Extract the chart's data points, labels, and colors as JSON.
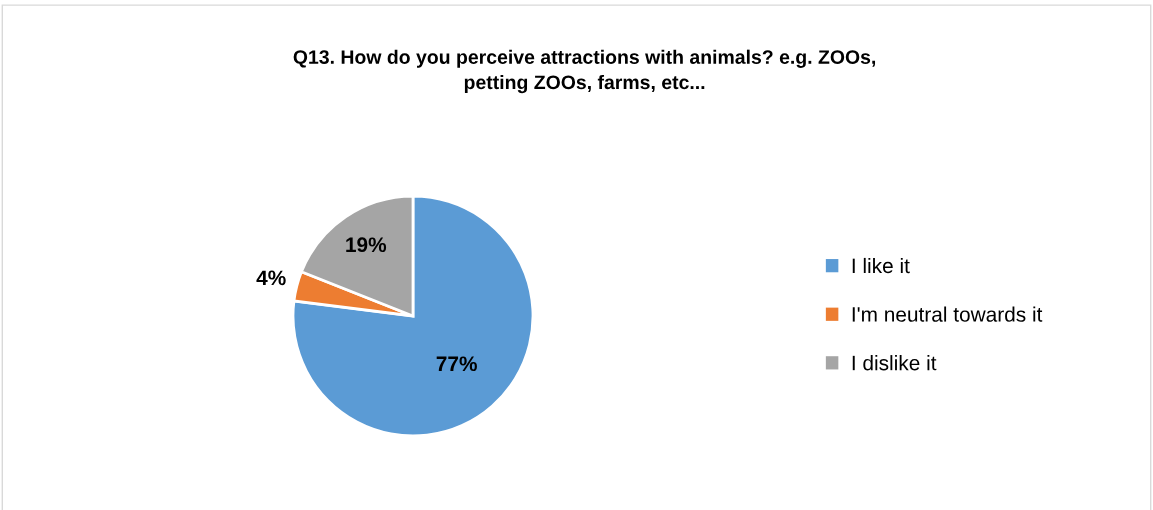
{
  "chart_data": {
    "type": "pie",
    "title": "Q13. How do you perceive attractions with animals? e.g. ZOOs,\npetting ZOOs, farms, etc...",
    "categories": [
      "I like it",
      "I'm neutral towards it",
      "I dislike it"
    ],
    "values": [
      77,
      4,
      19
    ],
    "colors": [
      "#5b9bd5",
      "#ed7d31",
      "#a5a5a5"
    ],
    "value_labels": [
      "77%",
      "4%",
      "19%"
    ],
    "legend": "right"
  }
}
